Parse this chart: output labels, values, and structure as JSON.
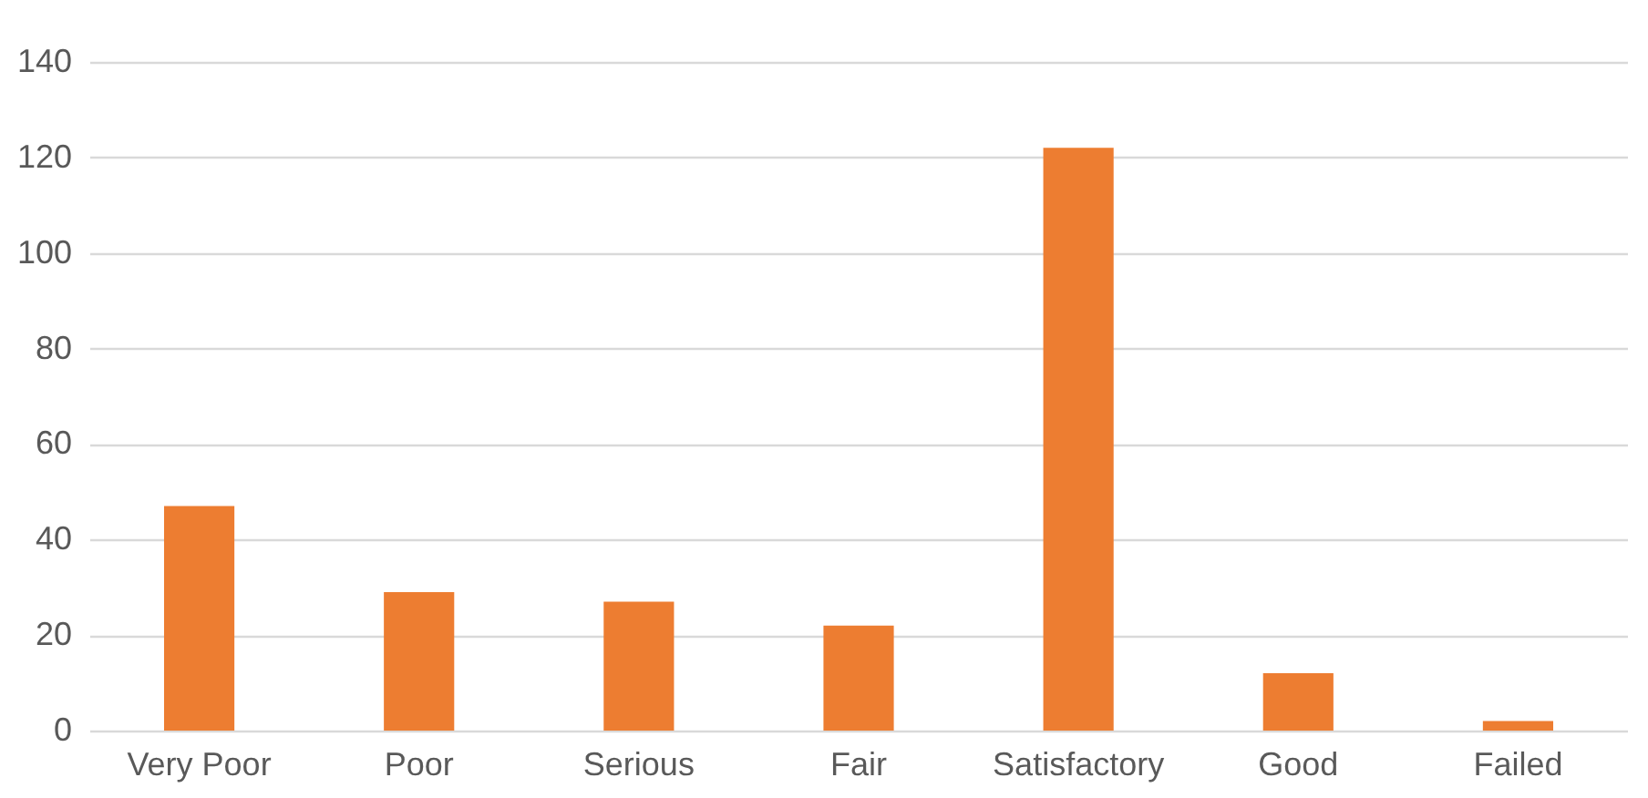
{
  "chart_data": {
    "type": "bar",
    "categories": [
      "Very Poor",
      "Poor",
      "Serious",
      "Fair",
      "Satisfactory",
      "Good",
      "Failed"
    ],
    "values": [
      47,
      29,
      27,
      22,
      122,
      12,
      2
    ],
    "color": "#ed7d31",
    "ylim": [
      0,
      140
    ],
    "yticks": [
      0,
      20,
      40,
      60,
      80,
      100,
      120,
      140
    ],
    "grid": "y"
  }
}
